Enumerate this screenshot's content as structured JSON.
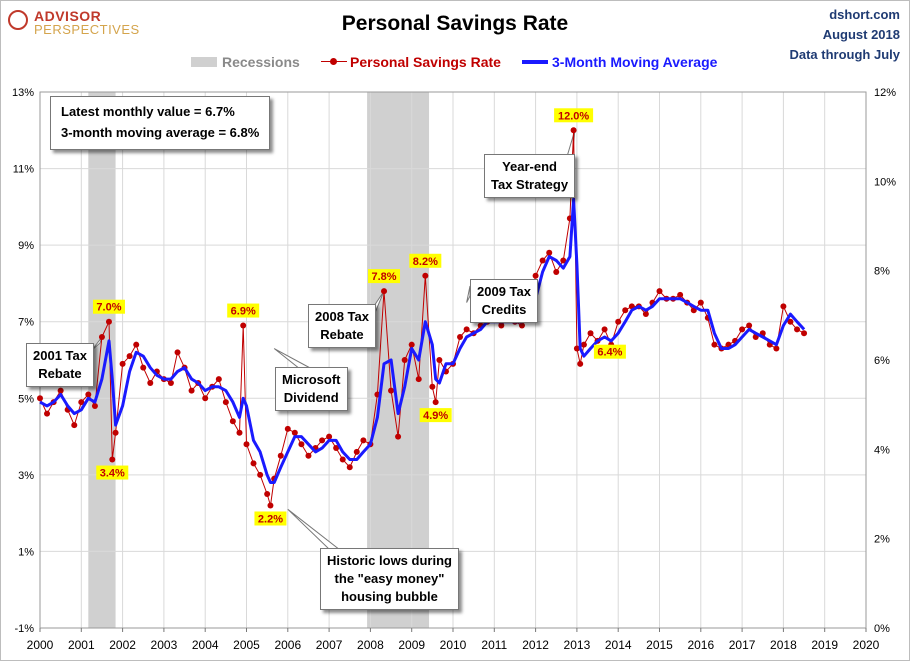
{
  "header": {
    "title": "Personal Savings Rate",
    "logo_top": "ADVISOR",
    "logo_bottom": "PERSPECTIVES",
    "source": "dshort.com",
    "date": "August 2018",
    "data_through": "Data through July"
  },
  "legend": {
    "recessions": "Recessions",
    "psr": "Personal Savings Rate",
    "ma": "3-Month Moving Average"
  },
  "infobox": {
    "line1": "Latest monthly value = 6.7%",
    "line2": "3-month moving average = 6.8%"
  },
  "callouts": {
    "tax2001": [
      "2001 Tax",
      "Rebate"
    ],
    "microsoft": [
      "Microsoft",
      "Dividend"
    ],
    "tax2008": [
      "2008 Tax",
      "Rebate"
    ],
    "tax2009": [
      "2009 Tax",
      "Credits"
    ],
    "yearend": [
      "Year-end",
      "Tax Strategy"
    ],
    "lows": [
      "Historic lows during",
      "the \"easy money\"",
      "housing bubble"
    ]
  },
  "colors": {
    "psr": "#c00000",
    "ma": "#1a1aff",
    "recession": "#d0d0d0",
    "grid": "#d9d9d9",
    "label_bg": "#ffff00",
    "label_text": "#c00000"
  },
  "chart_data": {
    "type": "line",
    "title": "Personal Savings Rate",
    "x_ticks": [
      "2000",
      "2001",
      "2002",
      "2003",
      "2004",
      "2005",
      "2006",
      "2007",
      "2008",
      "2009",
      "2010",
      "2011",
      "2012",
      "2013",
      "2014",
      "2015",
      "2016",
      "2017",
      "2018",
      "2019",
      "2020"
    ],
    "y_left_ticks": [
      "13%",
      "11%",
      "9%",
      "7%",
      "5%",
      "3%",
      "1%",
      "-1%"
    ],
    "y_right_ticks": [
      "12%",
      "10%",
      "8%",
      "6%",
      "4%",
      "2%",
      "0%"
    ],
    "y_left_range": [
      -1,
      13
    ],
    "y_right_range": [
      0,
      12
    ],
    "grid": true,
    "legend_position": "top",
    "recessions": [
      {
        "start": 2001.17,
        "end": 2001.83
      },
      {
        "start": 2007.92,
        "end": 2009.42
      }
    ],
    "data_labels": [
      {
        "x": 2001.67,
        "y": 7.0,
        "text": "7.0%"
      },
      {
        "x": 2001.75,
        "y": 3.4,
        "text": "3.4%"
      },
      {
        "x": 2004.92,
        "y": 6.9,
        "text": "6.9%"
      },
      {
        "x": 2005.58,
        "y": 2.2,
        "text": "2.2%"
      },
      {
        "x": 2008.33,
        "y": 7.8,
        "text": "7.8%"
      },
      {
        "x": 2009.33,
        "y": 8.2,
        "text": "8.2%"
      },
      {
        "x": 2009.58,
        "y": 4.9,
        "text": "4.9%"
      },
      {
        "x": 2012.92,
        "y": 12.0,
        "text": "12.0%"
      },
      {
        "x": 2013.17,
        "y": 6.4,
        "text": "6.4%"
      }
    ],
    "series": [
      {
        "name": "Personal Savings Rate",
        "x": [
          2000.0,
          2000.17,
          2000.33,
          2000.5,
          2000.67,
          2000.83,
          2001.0,
          2001.17,
          2001.33,
          2001.5,
          2001.67,
          2001.75,
          2001.83,
          2002.0,
          2002.17,
          2002.33,
          2002.5,
          2002.67,
          2002.83,
          2003.0,
          2003.17,
          2003.33,
          2003.5,
          2003.67,
          2003.83,
          2004.0,
          2004.17,
          2004.33,
          2004.5,
          2004.67,
          2004.83,
          2004.92,
          2005.0,
          2005.17,
          2005.33,
          2005.5,
          2005.58,
          2005.67,
          2005.83,
          2006.0,
          2006.17,
          2006.33,
          2006.5,
          2006.67,
          2006.83,
          2007.0,
          2007.17,
          2007.33,
          2007.5,
          2007.67,
          2007.83,
          2008.0,
          2008.17,
          2008.33,
          2008.5,
          2008.67,
          2008.83,
          2009.0,
          2009.17,
          2009.33,
          2009.5,
          2009.58,
          2009.67,
          2009.83,
          2010.0,
          2010.17,
          2010.33,
          2010.5,
          2010.67,
          2010.83,
          2011.0,
          2011.17,
          2011.33,
          2011.5,
          2011.67,
          2011.83,
          2012.0,
          2012.17,
          2012.33,
          2012.5,
          2012.67,
          2012.83,
          2012.92,
          2013.0,
          2013.08,
          2013.17,
          2013.33,
          2013.5,
          2013.67,
          2013.83,
          2014.0,
          2014.17,
          2014.33,
          2014.5,
          2014.67,
          2014.83,
          2015.0,
          2015.17,
          2015.33,
          2015.5,
          2015.67,
          2015.83,
          2016.0,
          2016.17,
          2016.33,
          2016.5,
          2016.67,
          2016.83,
          2017.0,
          2017.17,
          2017.33,
          2017.5,
          2017.67,
          2017.83,
          2018.0,
          2018.17,
          2018.33,
          2018.5
        ],
        "values": [
          5.0,
          4.6,
          4.9,
          5.2,
          4.7,
          4.3,
          4.9,
          5.1,
          4.8,
          6.6,
          7.0,
          3.4,
          4.1,
          5.9,
          6.1,
          6.4,
          5.8,
          5.4,
          5.7,
          5.5,
          5.4,
          6.2,
          5.8,
          5.2,
          5.4,
          5.0,
          5.3,
          5.5,
          4.9,
          4.4,
          4.1,
          6.9,
          3.8,
          3.3,
          3.0,
          2.5,
          2.2,
          2.9,
          3.5,
          4.2,
          4.1,
          3.8,
          3.5,
          3.7,
          3.9,
          4.0,
          3.7,
          3.4,
          3.2,
          3.6,
          3.9,
          3.8,
          5.1,
          7.8,
          5.2,
          4.0,
          6.0,
          6.4,
          5.5,
          8.2,
          5.3,
          4.9,
          6.0,
          5.7,
          5.9,
          6.6,
          6.8,
          6.7,
          6.9,
          7.0,
          7.1,
          6.9,
          7.1,
          7.0,
          6.9,
          7.4,
          8.2,
          8.6,
          8.8,
          8.3,
          8.6,
          9.7,
          12.0,
          6.3,
          5.9,
          6.4,
          6.7,
          6.5,
          6.8,
          6.4,
          7.0,
          7.3,
          7.4,
          7.4,
          7.2,
          7.5,
          7.8,
          7.6,
          7.6,
          7.7,
          7.5,
          7.3,
          7.5,
          7.1,
          6.4,
          6.3,
          6.4,
          6.5,
          6.8,
          6.9,
          6.6,
          6.7,
          6.4,
          6.3,
          7.4,
          7.0,
          6.8,
          6.7
        ]
      },
      {
        "name": "3-Month Moving Average",
        "x": [
          2000.0,
          2000.17,
          2000.33,
          2000.5,
          2000.67,
          2000.83,
          2001.0,
          2001.17,
          2001.33,
          2001.5,
          2001.67,
          2001.75,
          2001.83,
          2002.0,
          2002.17,
          2002.33,
          2002.5,
          2002.67,
          2002.83,
          2003.0,
          2003.17,
          2003.33,
          2003.5,
          2003.67,
          2003.83,
          2004.0,
          2004.17,
          2004.33,
          2004.5,
          2004.67,
          2004.83,
          2004.92,
          2005.0,
          2005.17,
          2005.33,
          2005.5,
          2005.58,
          2005.67,
          2005.83,
          2006.0,
          2006.17,
          2006.33,
          2006.5,
          2006.67,
          2006.83,
          2007.0,
          2007.17,
          2007.33,
          2007.5,
          2007.67,
          2007.83,
          2008.0,
          2008.17,
          2008.33,
          2008.5,
          2008.67,
          2008.83,
          2009.0,
          2009.17,
          2009.33,
          2009.5,
          2009.58,
          2009.67,
          2009.83,
          2010.0,
          2010.17,
          2010.33,
          2010.5,
          2010.67,
          2010.83,
          2011.0,
          2011.17,
          2011.33,
          2011.5,
          2011.67,
          2011.83,
          2012.0,
          2012.17,
          2012.33,
          2012.5,
          2012.67,
          2012.83,
          2012.92,
          2013.0,
          2013.08,
          2013.17,
          2013.33,
          2013.5,
          2013.67,
          2013.83,
          2014.0,
          2014.17,
          2014.33,
          2014.5,
          2014.67,
          2014.83,
          2015.0,
          2015.17,
          2015.33,
          2015.5,
          2015.67,
          2015.83,
          2016.0,
          2016.17,
          2016.33,
          2016.5,
          2016.67,
          2016.83,
          2017.0,
          2017.17,
          2017.33,
          2017.5,
          2017.67,
          2017.83,
          2018.0,
          2018.17,
          2018.33,
          2018.5
        ],
        "values": [
          4.9,
          4.8,
          4.9,
          5.1,
          4.8,
          4.6,
          4.7,
          5.0,
          4.9,
          5.5,
          6.5,
          5.5,
          4.3,
          4.8,
          5.7,
          6.2,
          6.1,
          5.8,
          5.6,
          5.5,
          5.5,
          5.7,
          5.8,
          5.5,
          5.4,
          5.2,
          5.3,
          5.3,
          5.2,
          4.9,
          4.5,
          5.0,
          4.8,
          3.9,
          3.6,
          3.0,
          2.8,
          2.8,
          3.2,
          3.6,
          4.0,
          4.0,
          3.8,
          3.6,
          3.7,
          3.9,
          3.9,
          3.6,
          3.4,
          3.4,
          3.6,
          3.8,
          4.5,
          5.9,
          6.0,
          4.6,
          5.3,
          6.3,
          6.0,
          7.0,
          6.4,
          5.5,
          5.4,
          5.9,
          5.9,
          6.3,
          6.6,
          6.7,
          6.8,
          7.0,
          7.0,
          7.0,
          7.0,
          7.0,
          7.0,
          7.1,
          7.6,
          8.3,
          8.7,
          8.6,
          8.4,
          8.7,
          10.2,
          8.5,
          6.3,
          6.1,
          6.3,
          6.5,
          6.6,
          6.5,
          6.7,
          7.0,
          7.3,
          7.4,
          7.3,
          7.4,
          7.6,
          7.6,
          7.6,
          7.6,
          7.5,
          7.4,
          7.3,
          7.3,
          6.7,
          6.3,
          6.3,
          6.4,
          6.6,
          6.8,
          6.7,
          6.6,
          6.5,
          6.4,
          6.9,
          7.2,
          7.0,
          6.8
        ]
      }
    ]
  }
}
